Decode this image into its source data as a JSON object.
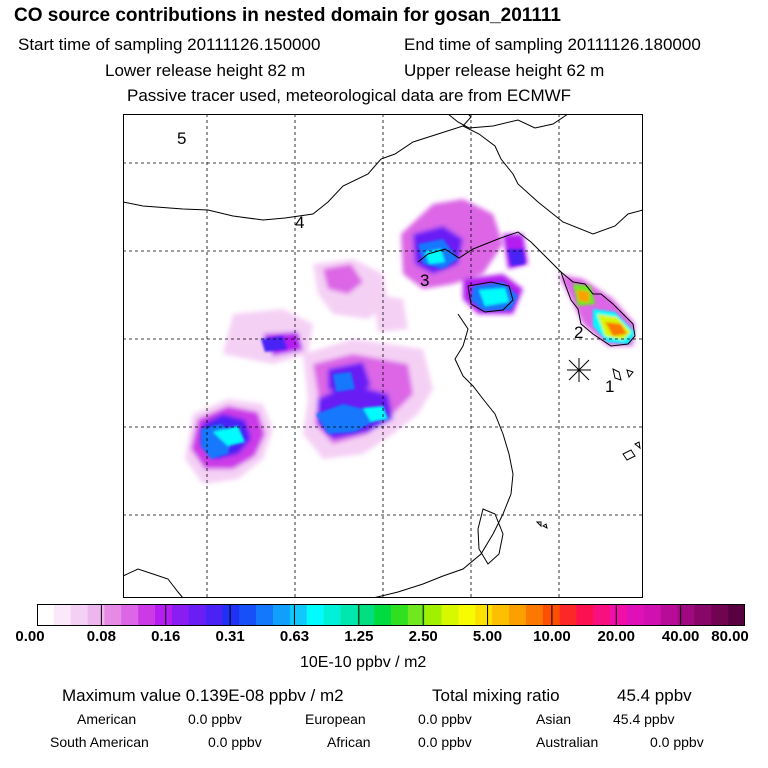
{
  "header": {
    "title": "CO  source contributions in nested domain for gosan_201111",
    "start": "Start time of sampling 20111126.150000",
    "end": "End time of sampling 20111126.180000",
    "lower": "Lower release height   82 m",
    "upper": "Upper release height   62 m",
    "note": "Passive tracer used, meteorological data are from ECMWF"
  },
  "map": {
    "labels": [
      "5",
      "4",
      "3",
      "2",
      "1"
    ],
    "receptor_symbol": "receptor-star"
  },
  "colorbar": {
    "ticks": [
      "0.00",
      "0.08",
      "0.16",
      "0.31",
      "0.63",
      "1.25",
      "2.50",
      "5.00",
      "10.00",
      "20.00",
      "40.00",
      "80.00"
    ],
    "colors": [
      "#ffffff",
      "#fbe8fb",
      "#f5d0f5",
      "#eeb6ee",
      "#e68ae6",
      "#dc66e6",
      "#cc3ae8",
      "#b41ef0",
      "#8a1ef2",
      "#6a1ef5",
      "#4a22f6",
      "#2030f4",
      "#1850f8",
      "#1478fc",
      "#10a0fc",
      "#10c8fc",
      "#00fcfc",
      "#00f0d8",
      "#00e8b0",
      "#00e080",
      "#00dc40",
      "#30e020",
      "#70e820",
      "#a0f000",
      "#d8f800",
      "#f8fc00",
      "#fce000",
      "#fcc000",
      "#fca000",
      "#fc7800",
      "#fc5000",
      "#fc2828",
      "#fc1050",
      "#f81080",
      "#f010a8",
      "#e010b8",
      "#d010b0",
      "#b80c98",
      "#a00880",
      "#880668",
      "#700450",
      "#580040"
    ],
    "unit": "10E-10 ppbv / m2"
  },
  "summary": {
    "max_label": "Maximum value  0.139E-08 ppbv / m2",
    "total_label": "Total mixing ratio",
    "total_value": "45.4 ppbv",
    "rows": [
      [
        [
          "American",
          "0.0 ppbv"
        ],
        [
          "European",
          "0.0 ppbv"
        ],
        [
          "Asian",
          "45.4 ppbv"
        ]
      ],
      [
        [
          "South American",
          "0.0 ppbv"
        ],
        [
          "African",
          "0.0 ppbv"
        ],
        [
          "Australian",
          "0.0 ppbv"
        ]
      ]
    ]
  }
}
